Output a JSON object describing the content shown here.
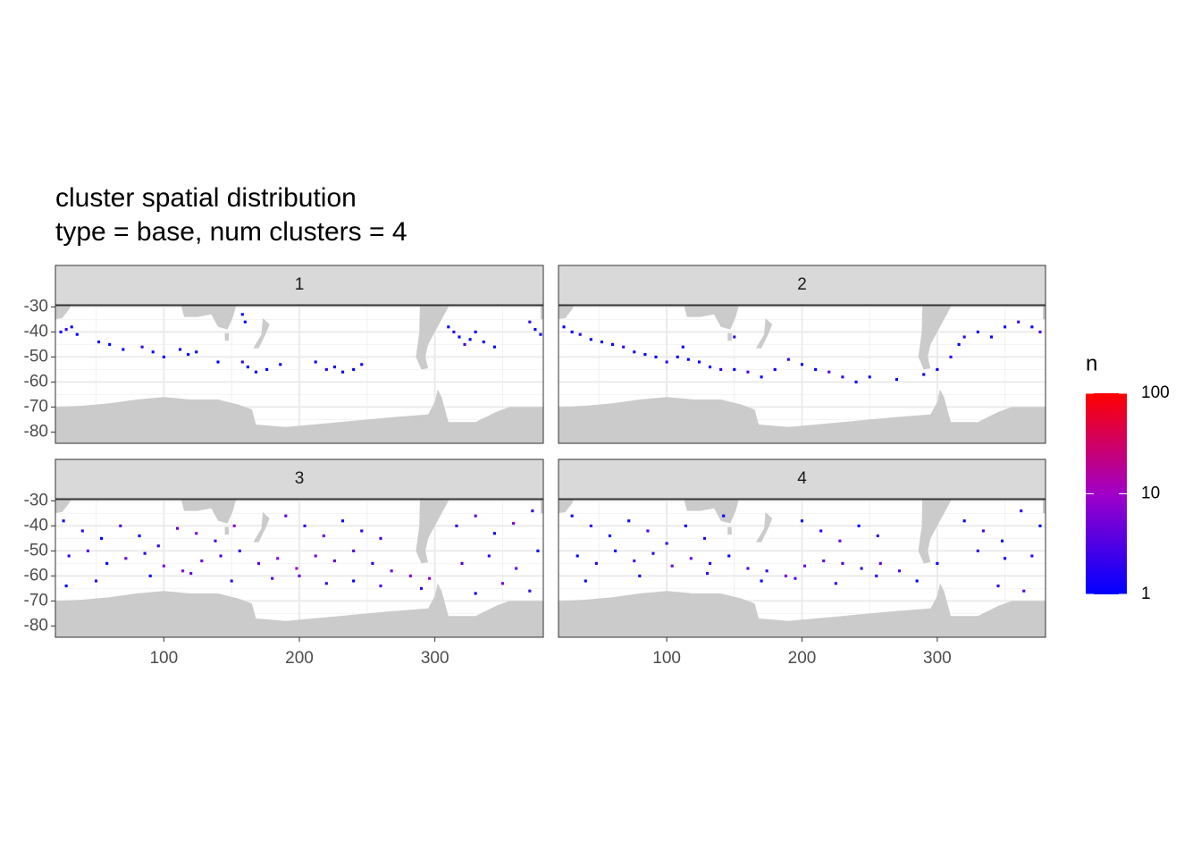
{
  "chart_data": {
    "type": "heatmap-facets",
    "title": "cluster spatial distribution",
    "subtitle": "type = base, num clusters = 4",
    "xlim": [
      20,
      380
    ],
    "xticks": [
      100,
      200,
      300
    ],
    "ylim": [
      -84.5,
      -29.5
    ],
    "yticks": [
      -30,
      -40,
      -50,
      -60,
      -70,
      -80
    ],
    "grid": true,
    "facets": [
      {
        "label": "1",
        "x": [
          24,
          28,
          32,
          36,
          52,
          60,
          70,
          84,
          92,
          100,
          112,
          118,
          124,
          140,
          158,
          162,
          168,
          176,
          186,
          212,
          220,
          226,
          232,
          240,
          246,
          310,
          314,
          318,
          322,
          326,
          330,
          336,
          344,
          370,
          374,
          378,
          158,
          160
        ],
        "y": [
          -40,
          -39,
          -38,
          -41,
          -44,
          -45,
          -47,
          -46,
          -48,
          -50,
          -47,
          -49,
          -48,
          -52,
          -52,
          -54,
          -56,
          -55,
          -53,
          -52,
          -55,
          -54,
          -56,
          -55,
          -53,
          -38,
          -40,
          -42,
          -45,
          -43,
          -40,
          -44,
          -46,
          -36,
          -39,
          -41,
          -33,
          -36
        ],
        "n": [
          1,
          2,
          1,
          1,
          1,
          1,
          1,
          2,
          1,
          1,
          1,
          1,
          1,
          1,
          2,
          1,
          1,
          1,
          1,
          1,
          2,
          1,
          1,
          1,
          1,
          1,
          2,
          1,
          3,
          1,
          1,
          1,
          1,
          2,
          1,
          1,
          1,
          1
        ]
      },
      {
        "label": "2",
        "x": [
          24,
          30,
          36,
          44,
          52,
          60,
          68,
          76,
          84,
          92,
          100,
          108,
          116,
          124,
          132,
          140,
          150,
          160,
          170,
          180,
          190,
          200,
          210,
          220,
          230,
          240,
          250,
          270,
          290,
          300,
          310,
          316,
          320,
          330,
          340,
          350,
          360,
          370,
          376,
          112,
          150
        ],
        "y": [
          -38,
          -40,
          -41,
          -43,
          -44,
          -45,
          -46,
          -48,
          -49,
          -50,
          -52,
          -50,
          -51,
          -52,
          -54,
          -55,
          -55,
          -56,
          -58,
          -55,
          -51,
          -53,
          -55,
          -56,
          -58,
          -60,
          -58,
          -59,
          -57,
          -55,
          -50,
          -45,
          -42,
          -40,
          -42,
          -38,
          -36,
          -38,
          -40,
          -46,
          -42
        ],
        "n": [
          1,
          1,
          2,
          1,
          1,
          1,
          2,
          1,
          1,
          1,
          2,
          1,
          1,
          1,
          1,
          2,
          1,
          3,
          1,
          1,
          2,
          1,
          1,
          3,
          2,
          1,
          1,
          1,
          1,
          1,
          2,
          1,
          2,
          1,
          1,
          1,
          2,
          1,
          3,
          1,
          2
        ]
      },
      {
        "label": "3",
        "x": [
          26,
          40,
          54,
          68,
          82,
          96,
          110,
          124,
          138,
          152,
          190,
          204,
          218,
          232,
          246,
          260,
          316,
          330,
          344,
          358,
          372,
          30,
          44,
          58,
          72,
          86,
          100,
          114,
          128,
          142,
          156,
          170,
          184,
          198,
          212,
          226,
          240,
          254,
          268,
          282,
          296,
          320,
          340,
          360,
          376,
          28,
          50,
          90,
          120,
          150,
          180,
          200,
          220,
          240,
          260,
          290,
          330,
          350,
          370
        ],
        "y": [
          -38,
          -42,
          -45,
          -40,
          -44,
          -48,
          -41,
          -43,
          -46,
          -40,
          -36,
          -40,
          -44,
          -38,
          -42,
          -45,
          -40,
          -36,
          -43,
          -39,
          -34,
          -52,
          -50,
          -55,
          -53,
          -51,
          -56,
          -58,
          -54,
          -52,
          -50,
          -55,
          -53,
          -57,
          -52,
          -54,
          -50,
          -55,
          -58,
          -60,
          -61,
          -55,
          -52,
          -57,
          -50,
          -64,
          -62,
          -60,
          -59,
          -62,
          -61,
          -60,
          -63,
          -62,
          -64,
          -65,
          -67,
          -63,
          -66
        ],
        "n": [
          1,
          2,
          1,
          3,
          1,
          2,
          4,
          6,
          3,
          8,
          4,
          2,
          5,
          1,
          2,
          3,
          2,
          4,
          1,
          6,
          2,
          2,
          3,
          1,
          4,
          2,
          6,
          8,
          5,
          3,
          2,
          4,
          7,
          10,
          6,
          4,
          3,
          2,
          5,
          7,
          9,
          3,
          2,
          4,
          1,
          1,
          2,
          1,
          4,
          2,
          3,
          5,
          2,
          1,
          3,
          2,
          1,
          6,
          2
        ]
      },
      {
        "label": "4",
        "x": [
          30,
          44,
          58,
          72,
          86,
          100,
          114,
          128,
          142,
          200,
          214,
          228,
          242,
          256,
          320,
          334,
          348,
          362,
          376,
          34,
          48,
          62,
          76,
          90,
          104,
          118,
          132,
          146,
          160,
          174,
          188,
          202,
          216,
          230,
          244,
          258,
          272,
          300,
          330,
          350,
          370,
          40,
          80,
          130,
          170,
          195,
          225,
          255,
          285,
          345,
          364
        ],
        "y": [
          -36,
          -40,
          -44,
          -38,
          -42,
          -47,
          -40,
          -45,
          -36,
          -38,
          -42,
          -46,
          -40,
          -44,
          -38,
          -42,
          -46,
          -34,
          -40,
          -52,
          -55,
          -50,
          -54,
          -51,
          -56,
          -53,
          -55,
          -52,
          -57,
          -58,
          -60,
          -56,
          -54,
          -55,
          -57,
          -55,
          -58,
          -55,
          -50,
          -53,
          -52,
          -62,
          -60,
          -59,
          -62,
          -61,
          -63,
          -60,
          -62,
          -64,
          -66
        ],
        "n": [
          1,
          2,
          1,
          1,
          3,
          2,
          1,
          2,
          1,
          1,
          2,
          4,
          1,
          2,
          1,
          3,
          1,
          2,
          1,
          1,
          2,
          1,
          3,
          2,
          4,
          5,
          2,
          1,
          3,
          2,
          6,
          5,
          4,
          3,
          2,
          4,
          3,
          1,
          2,
          1,
          2,
          1,
          1,
          2,
          1,
          3,
          2,
          2,
          1,
          2,
          3
        ]
      }
    ],
    "color_scale": {
      "title": "n",
      "log": true,
      "lim": [
        1,
        100
      ],
      "ticks": [
        1,
        10,
        100
      ],
      "colors": [
        "#0000ff",
        "#a000c8",
        "#ff0000"
      ]
    }
  }
}
